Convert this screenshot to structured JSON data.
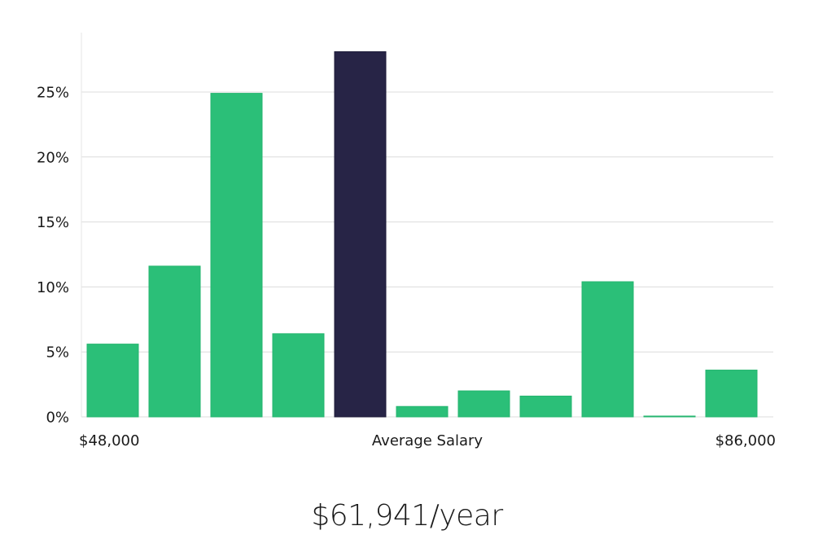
{
  "chart_data": {
    "type": "bar",
    "values": [
      5.6,
      11.6,
      24.9,
      6.4,
      28.1,
      0.8,
      2.0,
      1.6,
      10.4,
      0.05,
      3.6
    ],
    "highlight_index": 4,
    "ylim": [
      0,
      29.5
    ],
    "yticks": [
      0,
      5,
      10,
      15,
      20,
      25
    ],
    "ytick_labels": [
      "0%",
      "5%",
      "10%",
      "15%",
      "20%",
      "25%"
    ],
    "x_labels": {
      "left": "$48,000",
      "center": "Average Salary",
      "right": "$86,000"
    },
    "grid": true,
    "colors": {
      "bar": "#2bbf78",
      "bar_highlight": "#272446",
      "grid": "#dcdcdc"
    }
  },
  "summary": {
    "average_salary": "$61,941/year"
  }
}
